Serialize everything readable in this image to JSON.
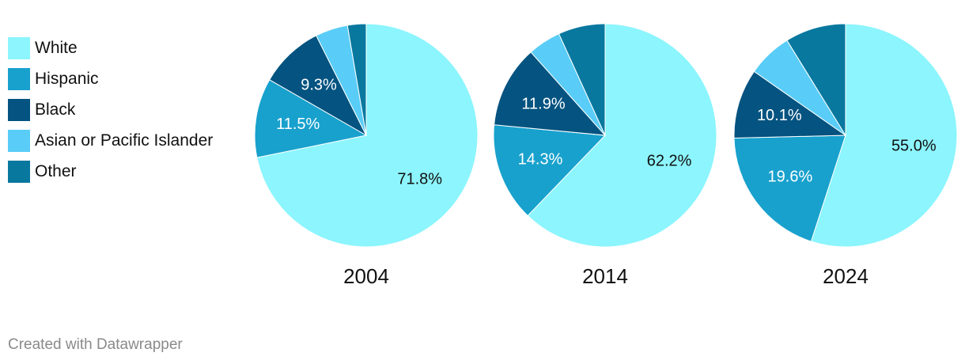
{
  "credit": "Created with Datawrapper",
  "chart_data": {
    "type": "pie",
    "categories": [
      "White",
      "Hispanic",
      "Black",
      "Asian or Pacific Islander",
      "Other"
    ],
    "colors": [
      "#8cf5fd",
      "#18a1cd",
      "#045380",
      "#59cdf7",
      "#08789f"
    ],
    "label_colors": [
      "#111111",
      "#ffffff",
      "#ffffff",
      "#ffffff",
      "#ffffff"
    ],
    "charts": [
      {
        "title": "2004",
        "values": [
          71.8,
          11.5,
          9.3,
          4.7,
          2.7
        ],
        "labels": [
          "71.8%",
          "11.5%",
          "9.3%",
          "",
          ""
        ]
      },
      {
        "title": "2014",
        "values": [
          62.2,
          14.3,
          11.9,
          4.8,
          6.8
        ],
        "labels": [
          "62.2%",
          "14.3%",
          "11.9%",
          "",
          ""
        ]
      },
      {
        "title": "2024",
        "values": [
          55.0,
          19.6,
          10.1,
          6.5,
          8.8
        ],
        "labels": [
          "55.0%",
          "19.6%",
          "10.1%",
          "",
          ""
        ]
      }
    ]
  }
}
